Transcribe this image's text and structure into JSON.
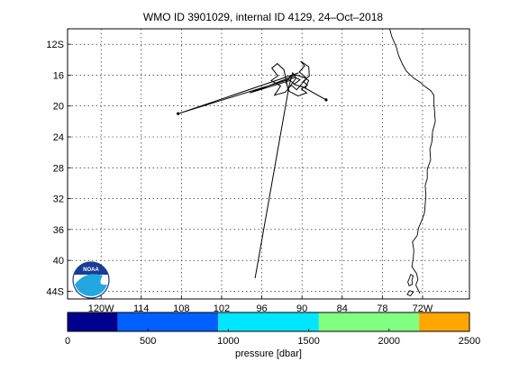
{
  "chart_data": [
    {
      "type": "map-track",
      "title": "WMO ID 3901029, internal ID 4129, 24–Oct–2018",
      "xlim": [
        -125,
        -65
      ],
      "ylim": [
        -45,
        -10
      ],
      "grid": true,
      "x_ticks": [
        {
          "value": -120,
          "label": "120W"
        },
        {
          "value": -114,
          "label": "114"
        },
        {
          "value": -108,
          "label": "108"
        },
        {
          "value": -102,
          "label": "102"
        },
        {
          "value": -96,
          "label": "96"
        },
        {
          "value": -90,
          "label": "90"
        },
        {
          "value": -84,
          "label": "84"
        },
        {
          "value": -78,
          "label": "78"
        },
        {
          "value": -72,
          "label": "72W"
        }
      ],
      "y_ticks": [
        {
          "value": -12,
          "label": "12S"
        },
        {
          "value": -16,
          "label": "16"
        },
        {
          "value": -20,
          "label": "20"
        },
        {
          "value": -24,
          "label": "24"
        },
        {
          "value": -28,
          "label": "28"
        },
        {
          "value": -32,
          "label": "32"
        },
        {
          "value": -36,
          "label": "36"
        },
        {
          "value": -40,
          "label": "40"
        },
        {
          "value": -44,
          "label": "44S"
        }
      ],
      "track": [
        [
          -97.0,
          -42.3
        ],
        [
          -91.9,
          -17.3
        ],
        [
          -91.4,
          -15.7
        ],
        [
          -90.9,
          -16.4
        ],
        [
          -92.1,
          -17.8
        ],
        [
          -92.7,
          -15.3
        ],
        [
          -93.7,
          -14.5
        ],
        [
          -94.5,
          -15.1
        ],
        [
          -93.6,
          -16.1
        ],
        [
          -94.6,
          -16.7
        ],
        [
          -93.2,
          -17.4
        ],
        [
          -94.1,
          -18.6
        ],
        [
          -92.5,
          -18.2
        ],
        [
          -91.6,
          -17.3
        ],
        [
          -90.8,
          -17.9
        ],
        [
          -90.0,
          -17.1
        ],
        [
          -89.3,
          -16.4
        ],
        [
          -90.4,
          -15.6
        ],
        [
          -89.6,
          -14.8
        ],
        [
          -90.2,
          -14.2
        ],
        [
          -89.0,
          -14.9
        ],
        [
          -88.9,
          -16.1
        ],
        [
          -89.8,
          -16.8
        ],
        [
          -89.2,
          -17.3
        ],
        [
          -90.1,
          -17.8
        ],
        [
          -89.3,
          -18.3
        ],
        [
          -90.6,
          -18.7
        ],
        [
          -91.9,
          -18.1
        ],
        [
          -92.4,
          -16.9
        ],
        [
          -91.7,
          -16.1
        ],
        [
          -90.5,
          -15.7
        ],
        [
          -108.5,
          -21.0
        ],
        [
          -91.0,
          -16.3
        ],
        [
          -90.3,
          -16.6
        ],
        [
          -91.2,
          -17.2
        ],
        [
          -89.7,
          -17.6
        ],
        [
          -86.4,
          -19.2
        ],
        [
          -89.5,
          -17.7
        ],
        [
          -89.0,
          -16.7
        ],
        [
          -89.7,
          -16.3
        ],
        [
          -90.8,
          -16.0
        ],
        [
          -97.8,
          -18.3
        ],
        [
          -91.8,
          -16.7
        ],
        [
          -91.2,
          -17.1
        ]
      ],
      "colorbar": {
        "label": "pressure [dbar]",
        "range": [
          0,
          2500
        ],
        "ticks": [
          0,
          500,
          1000,
          1500,
          2000,
          2500
        ],
        "bands": [
          {
            "from": 0,
            "to": 312,
            "color": "#00008f"
          },
          {
            "from": 312,
            "to": 937,
            "color": "#0060ff"
          },
          {
            "from": 937,
            "to": 1563,
            "color": "#00e6ff"
          },
          {
            "from": 1563,
            "to": 2187,
            "color": "#80ff80"
          },
          {
            "from": 2187,
            "to": 2500,
            "color": "#ffa600"
          }
        ]
      }
    }
  ],
  "coastline": [
    [
      -76.9,
      -10.0
    ],
    [
      -76.6,
      -11.0
    ],
    [
      -75.9,
      -12.4
    ],
    [
      -75.6,
      -13.4
    ],
    [
      -75.0,
      -14.6
    ],
    [
      -74.4,
      -15.5
    ],
    [
      -73.3,
      -16.4
    ],
    [
      -72.4,
      -16.9
    ],
    [
      -71.6,
      -17.5
    ],
    [
      -70.8,
      -18.0
    ],
    [
      -70.3,
      -18.6
    ],
    [
      -70.3,
      -19.6
    ],
    [
      -70.2,
      -20.7
    ],
    [
      -70.1,
      -22.0
    ],
    [
      -70.5,
      -23.3
    ],
    [
      -70.6,
      -24.6
    ],
    [
      -70.9,
      -25.6
    ],
    [
      -70.8,
      -27.0
    ],
    [
      -71.3,
      -28.2
    ],
    [
      -71.3,
      -29.4
    ],
    [
      -71.6,
      -30.3
    ],
    [
      -71.5,
      -31.6
    ],
    [
      -71.6,
      -32.7
    ],
    [
      -71.7,
      -33.8
    ],
    [
      -72.1,
      -34.8
    ],
    [
      -72.6,
      -35.8
    ],
    [
      -72.8,
      -36.8
    ],
    [
      -73.5,
      -37.6
    ],
    [
      -73.3,
      -38.7
    ],
    [
      -73.4,
      -39.8
    ],
    [
      -73.6,
      -40.8
    ],
    [
      -72.9,
      -41.7
    ],
    [
      -72.7,
      -42.5
    ],
    [
      -73.0,
      -43.2
    ],
    [
      -72.4,
      -44.3
    ]
  ],
  "islands": [
    [
      [
        -73.8,
        -41.8
      ],
      [
        -73.4,
        -42.0
      ],
      [
        -73.6,
        -42.6
      ],
      [
        -73.5,
        -43.1
      ],
      [
        -74.0,
        -43.3
      ],
      [
        -74.2,
        -42.8
      ],
      [
        -73.9,
        -42.2
      ],
      [
        -73.8,
        -41.8
      ]
    ],
    [
      [
        -73.9,
        -43.9
      ],
      [
        -73.4,
        -44.1
      ],
      [
        -73.8,
        -44.6
      ],
      [
        -74.3,
        -44.4
      ],
      [
        -73.9,
        -43.9
      ]
    ]
  ],
  "logo": {
    "text": "NOAA"
  }
}
